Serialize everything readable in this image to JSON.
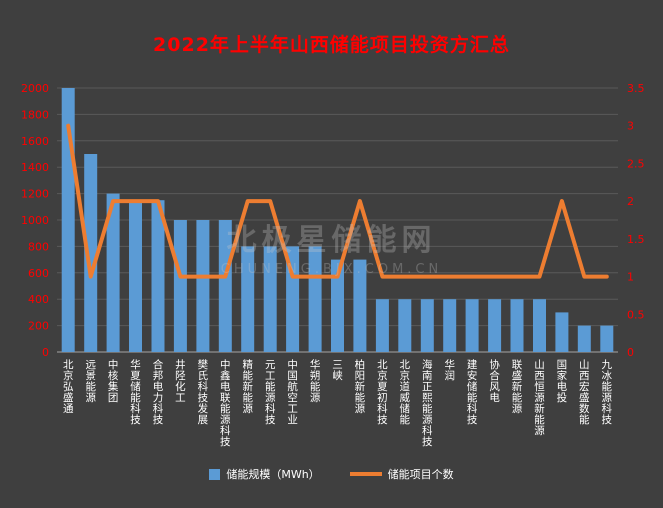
{
  "watermark": {
    "line1": "北极星储能网",
    "line2": "CHUNENG.BJX.COM.CN"
  },
  "colors": {
    "background": "#3F3F3F",
    "bar": "#5B9BD5",
    "line": "#ED7D31",
    "title": "#FF0000",
    "axis_text": "#FF0000",
    "category_text": "#FFFFFF",
    "grid": "#5A5A5A",
    "axis_line": "#A6A6A6",
    "watermark": "#C8C8C8"
  },
  "chart_data": {
    "type": "bar+line",
    "title": "2022年上半年山西储能项目投资方汇总",
    "categories": [
      "北京弘盛通",
      "远景能源",
      "中核集团",
      "华夏储能科技",
      "合邦电力科技",
      "井陉化工",
      "樊氏科技发展",
      "中鑫电联能源科技",
      "精能新能源",
      "元工能源科技",
      "中国航空工业",
      "华朔能源",
      "三峡",
      "柏阳新能源",
      "北京夏初科技",
      "北京道威储能",
      "海南正熙能源科技",
      "华润",
      "建安储能科技",
      "协合风电",
      "联盛新能源",
      "山西恒源新能源",
      "国家电投",
      "山西宏盛数能",
      "九冰能源科技"
    ],
    "series": [
      {
        "name": "储能规模（MWh）",
        "type": "bar",
        "axis": "left",
        "values": [
          2000,
          1500,
          1200,
          1150,
          1150,
          1000,
          1000,
          1000,
          800,
          800,
          800,
          800,
          700,
          700,
          400,
          400,
          400,
          400,
          400,
          400,
          400,
          400,
          300,
          200,
          200
        ]
      },
      {
        "name": "储能项目个数",
        "type": "line",
        "axis": "right",
        "values": [
          3,
          1,
          2,
          2,
          2,
          1,
          1,
          1,
          2,
          2,
          1,
          1,
          1,
          2,
          1,
          1,
          1,
          1,
          1,
          1,
          1,
          1,
          2,
          1,
          1
        ]
      }
    ],
    "left_axis": {
      "min": 0,
      "max": 2000,
      "step": 200
    },
    "right_axis": {
      "min": 0,
      "max": 3.5,
      "step": 0.5
    },
    "grid": true,
    "legend_position": "bottom"
  }
}
